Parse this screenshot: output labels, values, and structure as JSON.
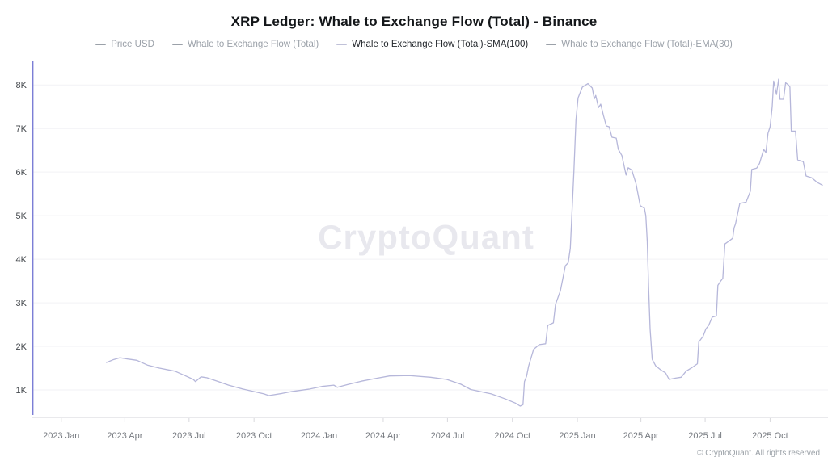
{
  "header": {
    "title": "XRP Ledger: Whale to Exchange Flow (Total) - Binance"
  },
  "legend": {
    "items": [
      {
        "label": "Price USD",
        "active": false
      },
      {
        "label": "Whale to Exchange Flow (Total)",
        "active": false
      },
      {
        "label": "Whale to Exchange Flow (Total)-SMA(100)",
        "active": true
      },
      {
        "label": "Whale to Exchange Flow (Total)-EMA(30)",
        "active": false
      }
    ]
  },
  "watermark": "CryptoQuant",
  "footer": "© CryptoQuant. All rights reserved",
  "colors": {
    "line": "#b6b7da",
    "y_axis": "#7c7ed6",
    "x_axis": "#e9e9ec",
    "grid": "#f2f2f5",
    "tick": "#d8d8dc",
    "y_label": "#44484d",
    "x_label": "#75797f"
  },
  "chart_data": {
    "type": "line",
    "title": "XRP Ledger: Whale to Exchange Flow (Total) - Binance",
    "xlabel": "",
    "ylabel": "",
    "grid": "horizontal",
    "legend_position": "top",
    "hidden_series": [
      "Price USD",
      "Whale to Exchange Flow (Total)",
      "Whale to Exchange Flow (Total)-EMA(30)"
    ],
    "x_domain": [
      "2022-11-21",
      "2025-12-22"
    ],
    "ylim": [
      370,
      8560
    ],
    "y_ticks": [
      {
        "v": 1000,
        "label": "1K"
      },
      {
        "v": 2000,
        "label": "2K"
      },
      {
        "v": 3000,
        "label": "3K"
      },
      {
        "v": 4000,
        "label": "4K"
      },
      {
        "v": 5000,
        "label": "5K"
      },
      {
        "v": 6000,
        "label": "6K"
      },
      {
        "v": 7000,
        "label": "7K"
      },
      {
        "v": 8000,
        "label": "8K"
      }
    ],
    "x_ticks": [
      {
        "date": "2023-01-01",
        "label": "2023 Jan"
      },
      {
        "date": "2023-04-01",
        "label": "2023 Apr"
      },
      {
        "date": "2023-07-01",
        "label": "2023 Jul"
      },
      {
        "date": "2023-10-01",
        "label": "2023 Oct"
      },
      {
        "date": "2024-01-01",
        "label": "2024 Jan"
      },
      {
        "date": "2024-04-01",
        "label": "2024 Apr"
      },
      {
        "date": "2024-07-01",
        "label": "2024 Jul"
      },
      {
        "date": "2024-10-01",
        "label": "2024 Oct"
      },
      {
        "date": "2025-01-01",
        "label": "2025 Jan"
      },
      {
        "date": "2025-04-01",
        "label": "2025 Apr"
      },
      {
        "date": "2025-07-01",
        "label": "2025 Jul"
      },
      {
        "date": "2025-10-01",
        "label": "2025 Oct"
      }
    ],
    "series": [
      {
        "name": "Whale to Exchange Flow (Total)-SMA(100)",
        "color": "#b6b7da",
        "points": [
          [
            "2023-03-06",
            1630
          ],
          [
            "2023-03-15",
            1690
          ],
          [
            "2023-03-25",
            1740
          ],
          [
            "2023-04-05",
            1710
          ],
          [
            "2023-04-18",
            1680
          ],
          [
            "2023-05-03",
            1570
          ],
          [
            "2023-05-20",
            1500
          ],
          [
            "2023-06-11",
            1430
          ],
          [
            "2023-06-25",
            1330
          ],
          [
            "2023-07-07",
            1240
          ],
          [
            "2023-07-10",
            1190
          ],
          [
            "2023-07-18",
            1300
          ],
          [
            "2023-07-26",
            1280
          ],
          [
            "2023-08-10",
            1200
          ],
          [
            "2023-08-26",
            1110
          ],
          [
            "2023-09-15",
            1020
          ],
          [
            "2023-10-15",
            910
          ],
          [
            "2023-10-22",
            870
          ],
          [
            "2023-11-10",
            920
          ],
          [
            "2023-11-22",
            960
          ],
          [
            "2023-12-19",
            1020
          ],
          [
            "2024-01-05",
            1080
          ],
          [
            "2024-01-22",
            1110
          ],
          [
            "2024-01-27",
            1060
          ],
          [
            "2024-02-10",
            1120
          ],
          [
            "2024-03-01",
            1200
          ],
          [
            "2024-03-20",
            1260
          ],
          [
            "2024-04-10",
            1320
          ],
          [
            "2024-05-07",
            1330
          ],
          [
            "2024-06-07",
            1290
          ],
          [
            "2024-06-30",
            1240
          ],
          [
            "2024-07-20",
            1130
          ],
          [
            "2024-08-03",
            1010
          ],
          [
            "2024-09-01",
            910
          ],
          [
            "2024-09-20",
            800
          ],
          [
            "2024-10-05",
            700
          ],
          [
            "2024-10-12",
            630
          ],
          [
            "2024-10-16",
            660
          ],
          [
            "2024-10-18",
            1190
          ],
          [
            "2024-10-21",
            1310
          ],
          [
            "2024-10-24",
            1550
          ],
          [
            "2024-10-31",
            1930
          ],
          [
            "2024-11-08",
            2040
          ],
          [
            "2024-11-17",
            2060
          ],
          [
            "2024-11-20",
            2480
          ],
          [
            "2024-11-28",
            2540
          ],
          [
            "2024-12-01",
            2960
          ],
          [
            "2024-12-08",
            3280
          ],
          [
            "2024-12-15",
            3850
          ],
          [
            "2024-12-19",
            3920
          ],
          [
            "2024-12-22",
            4250
          ],
          [
            "2024-12-27",
            6000
          ],
          [
            "2024-12-30",
            7200
          ],
          [
            "2025-01-02",
            7700
          ],
          [
            "2025-01-08",
            7950
          ],
          [
            "2025-01-16",
            8030
          ],
          [
            "2025-01-22",
            7930
          ],
          [
            "2025-01-25",
            7680
          ],
          [
            "2025-01-27",
            7760
          ],
          [
            "2025-01-31",
            7480
          ],
          [
            "2025-02-03",
            7560
          ],
          [
            "2025-02-07",
            7300
          ],
          [
            "2025-02-11",
            7060
          ],
          [
            "2025-02-15",
            7040
          ],
          [
            "2025-02-19",
            6800
          ],
          [
            "2025-02-25",
            6780
          ],
          [
            "2025-02-28",
            6520
          ],
          [
            "2025-03-05",
            6380
          ],
          [
            "2025-03-11",
            5930
          ],
          [
            "2025-03-14",
            6100
          ],
          [
            "2025-03-19",
            6050
          ],
          [
            "2025-03-25",
            5740
          ],
          [
            "2025-03-31",
            5230
          ],
          [
            "2025-04-06",
            5170
          ],
          [
            "2025-04-08",
            5000
          ],
          [
            "2025-04-10",
            4400
          ],
          [
            "2025-04-12",
            3330
          ],
          [
            "2025-04-14",
            2400
          ],
          [
            "2025-04-17",
            1700
          ],
          [
            "2025-04-22",
            1550
          ],
          [
            "2025-04-30",
            1450
          ],
          [
            "2025-05-06",
            1390
          ],
          [
            "2025-05-11",
            1240
          ],
          [
            "2025-05-20",
            1270
          ],
          [
            "2025-05-28",
            1290
          ],
          [
            "2025-06-04",
            1430
          ],
          [
            "2025-06-13",
            1520
          ],
          [
            "2025-06-20",
            1600
          ],
          [
            "2025-06-22",
            2100
          ],
          [
            "2025-06-28",
            2230
          ],
          [
            "2025-07-02",
            2400
          ],
          [
            "2025-07-06",
            2480
          ],
          [
            "2025-07-11",
            2670
          ],
          [
            "2025-07-17",
            2700
          ],
          [
            "2025-07-19",
            3400
          ],
          [
            "2025-07-23",
            3500
          ],
          [
            "2025-07-26",
            3560
          ],
          [
            "2025-07-29",
            4350
          ],
          [
            "2025-08-04",
            4420
          ],
          [
            "2025-08-09",
            4480
          ],
          [
            "2025-08-11",
            4720
          ],
          [
            "2025-08-13",
            4810
          ],
          [
            "2025-08-19",
            5280
          ],
          [
            "2025-08-28",
            5310
          ],
          [
            "2025-09-03",
            5560
          ],
          [
            "2025-09-05",
            6060
          ],
          [
            "2025-09-12",
            6090
          ],
          [
            "2025-09-16",
            6200
          ],
          [
            "2025-09-22",
            6520
          ],
          [
            "2025-09-25",
            6450
          ],
          [
            "2025-09-28",
            6890
          ],
          [
            "2025-10-01",
            7040
          ],
          [
            "2025-10-04",
            7500
          ],
          [
            "2025-10-06",
            8090
          ],
          [
            "2025-10-10",
            7780
          ],
          [
            "2025-10-13",
            8130
          ],
          [
            "2025-10-15",
            7670
          ],
          [
            "2025-10-20",
            7670
          ],
          [
            "2025-10-23",
            8050
          ],
          [
            "2025-10-27",
            8000
          ],
          [
            "2025-10-29",
            7950
          ],
          [
            "2025-10-31",
            6940
          ],
          [
            "2025-11-06",
            6940
          ],
          [
            "2025-11-09",
            6280
          ],
          [
            "2025-11-17",
            6240
          ],
          [
            "2025-11-21",
            5910
          ],
          [
            "2025-11-29",
            5870
          ],
          [
            "2025-12-07",
            5760
          ],
          [
            "2025-12-14",
            5700
          ]
        ]
      }
    ]
  }
}
